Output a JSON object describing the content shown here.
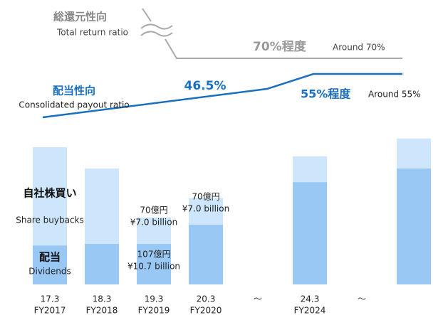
{
  "chart_data": {
    "type": "bar",
    "stacked": true,
    "categories": [
      "17.3",
      "18.3",
      "19.3",
      "20.3",
      "〜",
      "24.3",
      "〜",
      null
    ],
    "fiscal_years": [
      "FY2017",
      "FY2018",
      "FY2019",
      "FY2020",
      null,
      "FY2024",
      null,
      null
    ],
    "series": [
      {
        "name": "配当",
        "name_en": "Dividends",
        "color": "#99c8f5",
        "values": [
          103,
          107,
          107,
          158,
          null,
          270,
          null,
          306
        ],
        "value_labels": [
          null,
          null,
          "107億円",
          null,
          null,
          null,
          null,
          null
        ],
        "value_labels_en": [
          null,
          null,
          "¥10.7 billion",
          null,
          null,
          null,
          null,
          null
        ]
      },
      {
        "name": "自社株買い",
        "name_en": "Share buybacks",
        "color": "#cde6fb",
        "values": [
          259,
          199,
          70,
          70,
          null,
          68,
          null,
          79
        ],
        "value_labels": [
          null,
          null,
          "70億円",
          "70億円",
          null,
          null,
          null,
          null
        ],
        "value_labels_en": [
          null,
          null,
          "¥7.0 billion",
          "¥7.0 billion",
          null,
          null,
          null,
          null
        ]
      }
    ],
    "annotations": {
      "total_ja": "総還元性向",
      "total_en": "Total return ratio",
      "total_target": "70%程度",
      "total_target_en": "Around 70%",
      "payout_ja": "配当性向",
      "payout_en": "Consolidated payout ratio",
      "payout_value": "46.5%",
      "payout_target": "55%程度",
      "payout_target_en": "Around 55%"
    }
  }
}
